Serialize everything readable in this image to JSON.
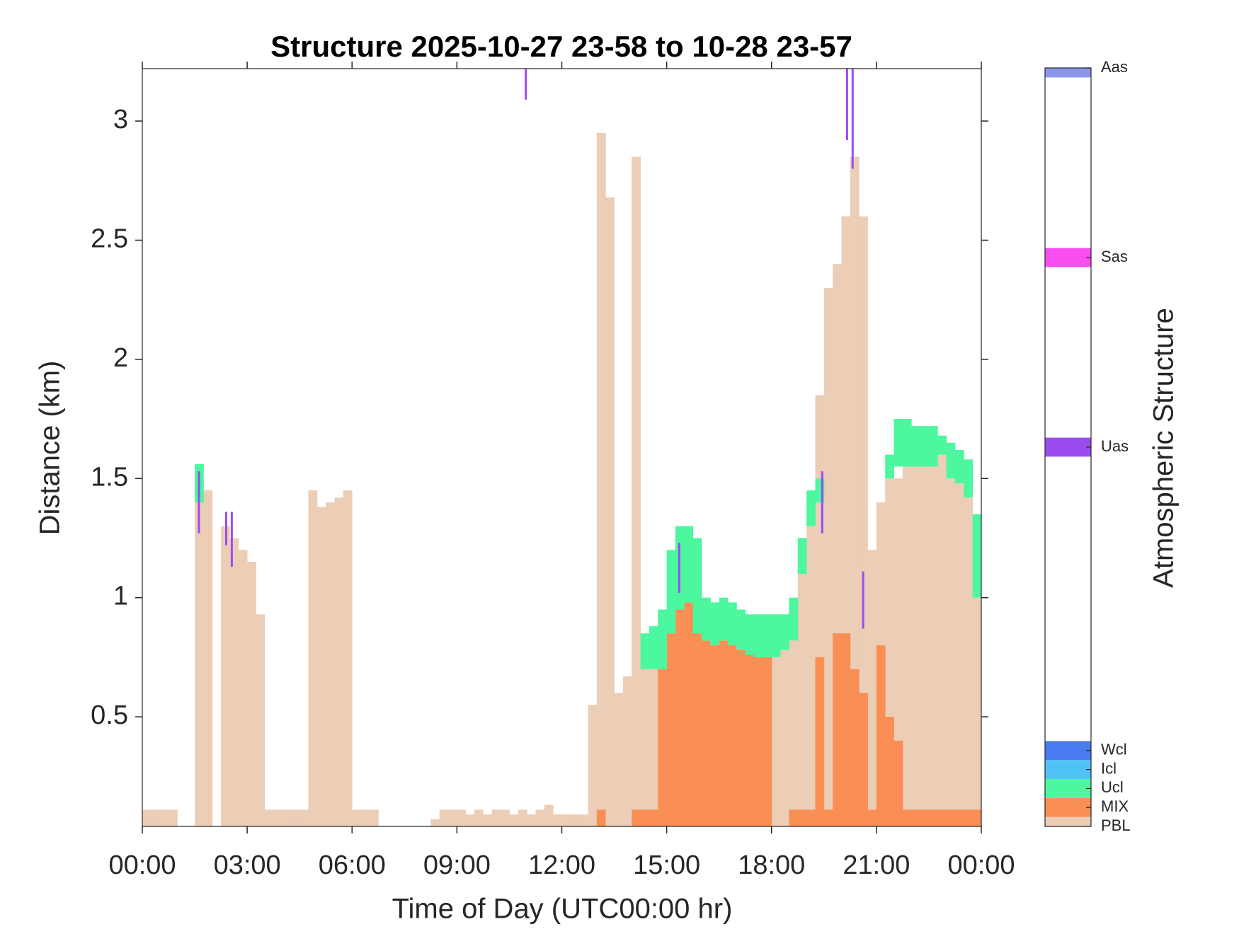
{
  "chart_data": {
    "type": "structure",
    "title": "Structure 2025-10-27 23-58 to 10-28 23-57",
    "xlabel": "Time of Day (UTC00:00 hr)",
    "ylabel": "Distance (km)",
    "xlim": [
      0,
      24
    ],
    "xticks": [
      {
        "value": 0,
        "label": "00:00"
      },
      {
        "value": 3,
        "label": "03:00"
      },
      {
        "value": 6,
        "label": "06:00"
      },
      {
        "value": 9,
        "label": "09:00"
      },
      {
        "value": 12,
        "label": "12:00"
      },
      {
        "value": 15,
        "label": "15:00"
      },
      {
        "value": 18,
        "label": "18:00"
      },
      {
        "value": 21,
        "label": "21:00"
      },
      {
        "value": 24,
        "label": "00:00"
      }
    ],
    "ylim": [
      0.04,
      3.22
    ],
    "yticks": [
      0.5,
      1,
      1.5,
      2,
      2.5,
      3
    ],
    "bin_width": 0.25,
    "x": [
      0,
      0.25,
      0.5,
      0.75,
      1,
      1.25,
      1.5,
      1.75,
      2,
      2.25,
      2.5,
      2.75,
      3,
      3.25,
      3.5,
      3.75,
      4,
      4.25,
      4.5,
      4.75,
      5,
      5.25,
      5.5,
      5.75,
      6,
      6.25,
      6.5,
      6.75,
      7,
      7.25,
      7.5,
      7.75,
      8,
      8.25,
      8.5,
      8.75,
      9,
      9.25,
      9.5,
      9.75,
      10,
      10.25,
      10.5,
      10.75,
      11,
      11.25,
      11.5,
      11.75,
      12,
      12.25,
      12.5,
      12.75,
      13,
      13.25,
      13.5,
      13.75,
      14,
      14.25,
      14.5,
      14.75,
      15,
      15.25,
      15.5,
      15.75,
      16,
      16.25,
      16.5,
      16.75,
      17,
      17.25,
      17.5,
      17.75,
      18,
      18.25,
      18.5,
      18.75,
      19,
      19.25,
      19.5,
      19.75,
      20,
      20.25,
      20.5,
      20.75,
      21,
      21.25,
      21.5,
      21.75,
      22,
      22.25,
      22.5,
      22.75,
      23,
      23.25,
      23.5,
      23.75
    ],
    "series": [
      {
        "name": "PBL",
        "values": [
          0.11,
          0.11,
          0.11,
          0.11,
          null,
          null,
          1.5,
          1.45,
          null,
          1.3,
          1.25,
          1.2,
          1.15,
          0.93,
          0.11,
          0.11,
          0.11,
          0.11,
          0.11,
          1.45,
          1.38,
          1.4,
          1.42,
          1.45,
          0.11,
          0.11,
          0.11,
          null,
          null,
          null,
          null,
          null,
          null,
          0.07,
          0.11,
          0.11,
          0.11,
          0.09,
          0.11,
          0.09,
          0.11,
          0.11,
          0.09,
          0.11,
          0.09,
          0.11,
          0.13,
          0.09,
          0.09,
          0.09,
          0.09,
          0.55,
          2.95,
          2.68,
          0.6,
          0.67,
          2.85,
          0.8,
          0.75,
          0.7,
          0.85,
          0.9,
          0.95,
          0.85,
          0.8,
          0.8,
          0.8,
          0.8,
          0.8,
          0.8,
          0.8,
          0.8,
          0.8,
          0.78,
          0.82,
          1.1,
          1.3,
          1.85,
          2.3,
          2.4,
          2.6,
          2.85,
          2.6,
          1.2,
          1.4,
          1.5,
          1.5,
          1.55,
          1.55,
          1.55,
          1.55,
          1.6,
          1.5,
          1.48,
          1.42,
          1.35
        ]
      },
      {
        "name": "MIX",
        "values": [
          null,
          null,
          null,
          null,
          null,
          null,
          null,
          null,
          null,
          null,
          null,
          null,
          null,
          null,
          null,
          null,
          null,
          null,
          null,
          null,
          null,
          null,
          null,
          null,
          null,
          null,
          null,
          null,
          null,
          null,
          null,
          null,
          null,
          null,
          null,
          null,
          null,
          null,
          null,
          null,
          null,
          null,
          null,
          null,
          null,
          null,
          null,
          null,
          null,
          null,
          null,
          null,
          0.11,
          null,
          null,
          null,
          0.11,
          0.11,
          0.11,
          0.7,
          0.85,
          0.95,
          0.98,
          0.85,
          0.82,
          0.8,
          0.82,
          0.8,
          0.78,
          0.76,
          0.75,
          0.75,
          null,
          null,
          0.11,
          0.11,
          0.11,
          0.75,
          0.11,
          0.85,
          0.85,
          0.7,
          0.6,
          0.11,
          0.8,
          0.5,
          0.4,
          0.11,
          0.11,
          0.11,
          0.11,
          0.11,
          0.11,
          0.11,
          0.11,
          0.11
        ]
      },
      {
        "name": "Ucl",
        "base": [
          null,
          null,
          null,
          null,
          null,
          null,
          1.4,
          null,
          null,
          null,
          null,
          null,
          null,
          null,
          null,
          null,
          null,
          null,
          null,
          null,
          null,
          null,
          null,
          null,
          null,
          null,
          null,
          null,
          null,
          null,
          null,
          null,
          null,
          null,
          null,
          null,
          null,
          null,
          null,
          null,
          null,
          null,
          null,
          null,
          null,
          null,
          null,
          null,
          null,
          null,
          null,
          null,
          null,
          null,
          null,
          null,
          null,
          0.7,
          0.7,
          0.7,
          0.85,
          0.95,
          0.98,
          0.85,
          0.82,
          0.8,
          0.82,
          0.8,
          0.78,
          0.76,
          0.75,
          0.75,
          0.75,
          0.78,
          0.82,
          1.1,
          1.3,
          1.4,
          null,
          null,
          null,
          null,
          null,
          null,
          null,
          1.5,
          1.55,
          1.55,
          1.55,
          1.55,
          1.55,
          1.6,
          1.5,
          1.48,
          1.42,
          1.0
        ],
        "values": [
          null,
          null,
          null,
          null,
          null,
          null,
          1.56,
          null,
          null,
          null,
          null,
          null,
          null,
          null,
          null,
          null,
          null,
          null,
          null,
          null,
          null,
          null,
          null,
          null,
          null,
          null,
          null,
          null,
          null,
          null,
          null,
          null,
          null,
          null,
          null,
          null,
          null,
          null,
          null,
          null,
          null,
          null,
          null,
          null,
          null,
          null,
          null,
          null,
          null,
          null,
          null,
          null,
          null,
          null,
          null,
          null,
          null,
          0.85,
          0.88,
          0.95,
          1.2,
          1.3,
          1.3,
          1.25,
          1.0,
          0.98,
          1.0,
          0.98,
          0.95,
          0.93,
          0.93,
          0.93,
          0.93,
          0.93,
          1.0,
          1.25,
          1.45,
          1.5,
          null,
          null,
          null,
          null,
          null,
          null,
          null,
          1.6,
          1.75,
          1.75,
          1.72,
          1.72,
          1.72,
          1.68,
          1.65,
          1.62,
          1.58,
          1.35
        ]
      }
    ],
    "events": {
      "name": "Uas",
      "x": [
        1.62,
        2.4,
        2.56,
        10.97,
        15.36,
        19.45,
        20.16,
        20.32,
        20.62
      ],
      "base": [
        1.27,
        1.22,
        1.13,
        3.09,
        1.02,
        1.27,
        2.92,
        2.8,
        0.87
      ],
      "top": [
        1.53,
        1.36,
        1.36,
        3.22,
        1.23,
        1.53,
        3.22,
        3.22,
        1.11
      ]
    },
    "colorbar": {
      "label": "Atmospheric Structure",
      "lim": [
        0,
        40
      ],
      "levels": [
        {
          "name": "PBL",
          "value": 0,
          "color": "#eccdb6"
        },
        {
          "name": "MIX",
          "value": 1,
          "color": "#f98f54"
        },
        {
          "name": "Ucl",
          "value": 2,
          "color": "#4cf79f"
        },
        {
          "name": "Icl",
          "value": 3,
          "color": "#4fc3f7"
        },
        {
          "name": "Wcl",
          "value": 4,
          "color": "#4a7bf0"
        },
        {
          "name": "Uas",
          "value": 20,
          "color": "#9b4cf0"
        },
        {
          "name": "Sas",
          "value": 30,
          "color": "#f84ef0"
        },
        {
          "name": "Aas",
          "value": 40,
          "color": "#8a96e8"
        }
      ]
    }
  }
}
